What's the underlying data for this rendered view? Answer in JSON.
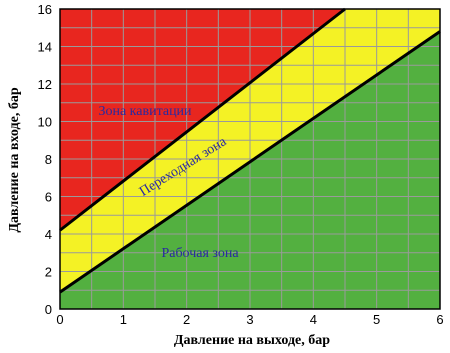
{
  "chart_data": {
    "type": "area",
    "xlabel": "Давление на выходе, бар",
    "ylabel": "Давление на входе, бар",
    "xlim": [
      0,
      6
    ],
    "ylim": [
      0,
      16
    ],
    "xticks": [
      "0",
      "1",
      "2",
      "3",
      "4",
      "5",
      "6"
    ],
    "yticks": [
      "0",
      "2",
      "4",
      "6",
      "8",
      "10",
      "12",
      "14",
      "16"
    ],
    "grid": true,
    "lines": [
      {
        "x": [
          0,
          4.5
        ],
        "y": [
          4.2,
          16
        ]
      },
      {
        "x": [
          0,
          6
        ],
        "y": [
          0.9,
          14.8
        ]
      }
    ],
    "zones": [
      {
        "label": "Зона кавитации",
        "color": "#e8261f"
      },
      {
        "label": "Переходная зона",
        "color": "#f4f225"
      },
      {
        "label": "Рабочая зона",
        "color": "#53b040"
      }
    ]
  }
}
